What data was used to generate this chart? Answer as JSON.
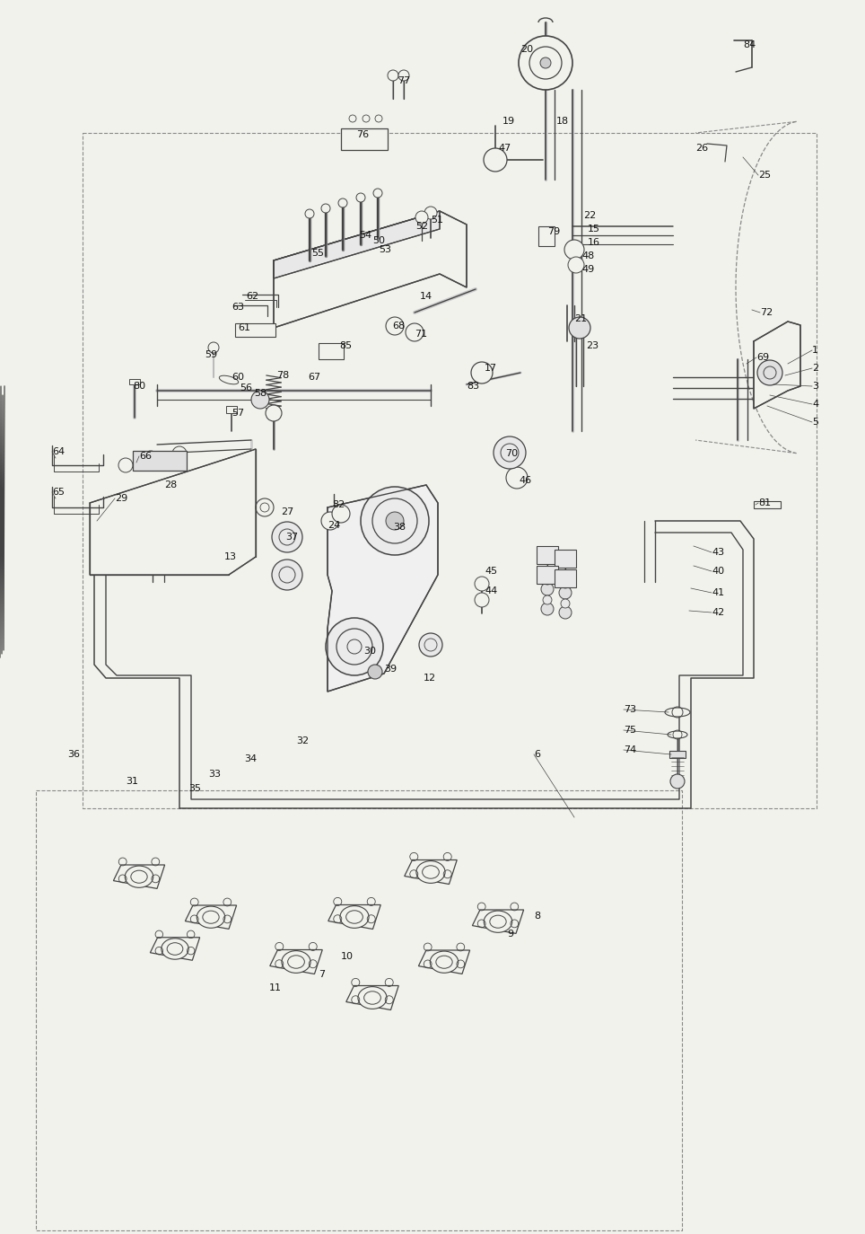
{
  "bg_color": "#f2f2ed",
  "line_color": "#444444",
  "label_color": "#111111",
  "dash_color": "#888888",
  "fig_width": 9.64,
  "fig_height": 13.74,
  "dpi": 100
}
